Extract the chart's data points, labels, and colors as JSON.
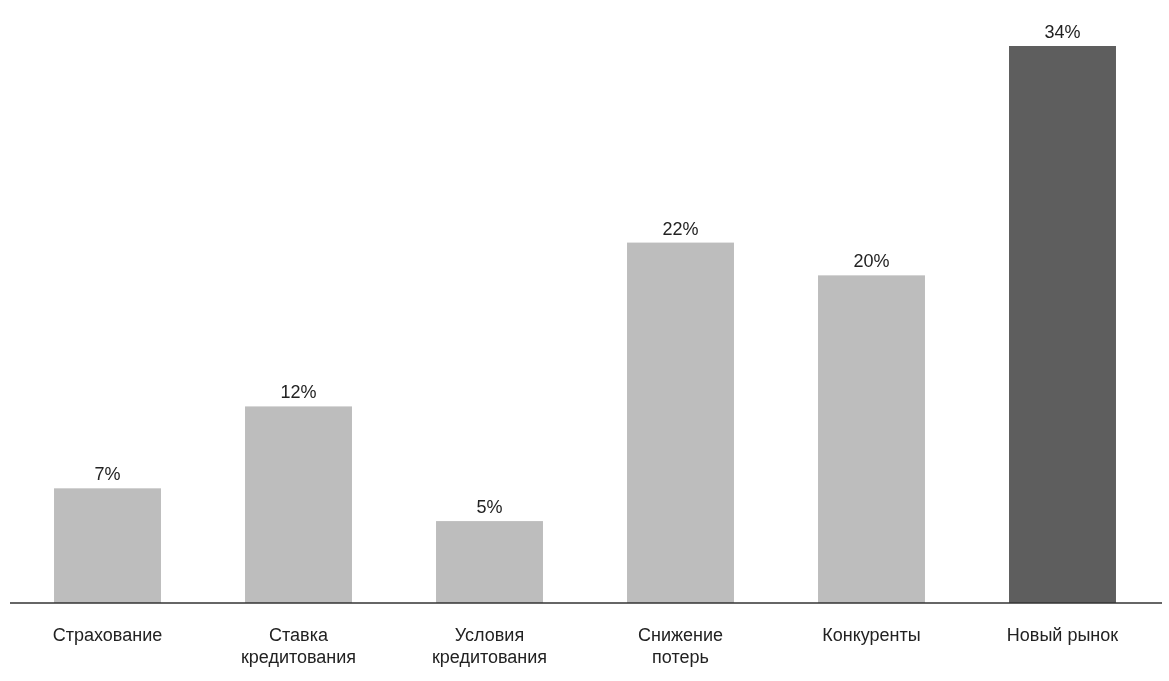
{
  "chart_data": {
    "type": "bar",
    "categories": [
      "Страхование",
      "Ставка кредитования",
      "Условия кредитования",
      "Снижение потерь",
      "Конкуренты",
      "Новый рынок"
    ],
    "values": [
      7,
      12,
      5,
      22,
      20,
      34
    ],
    "value_labels": [
      "7%",
      "12%",
      "5%",
      "22%",
      "20%",
      "34%"
    ],
    "colors": [
      "#bdbdbd",
      "#bdbdbd",
      "#bdbdbd",
      "#bdbdbd",
      "#bdbdbd",
      "#5e5e5e"
    ]
  }
}
